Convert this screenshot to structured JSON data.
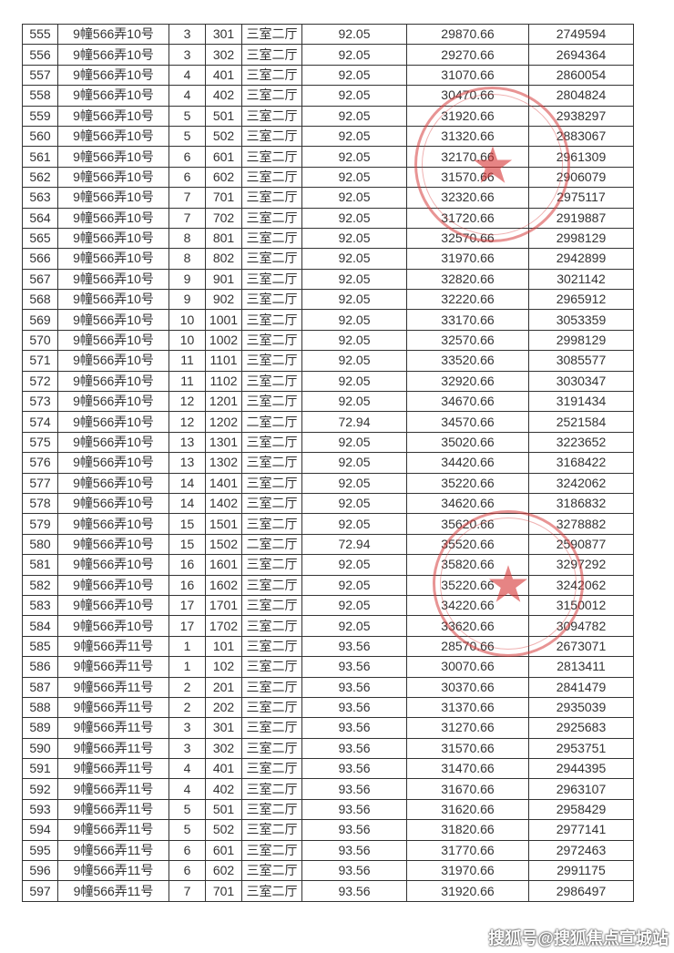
{
  "rows": [
    [
      "555",
      "9幢566弄10号",
      "3",
      "301",
      "三室二厅",
      "92.05",
      "29870.66",
      "2749594"
    ],
    [
      "556",
      "9幢566弄10号",
      "3",
      "302",
      "三室二厅",
      "92.05",
      "29270.66",
      "2694364"
    ],
    [
      "557",
      "9幢566弄10号",
      "4",
      "401",
      "三室二厅",
      "92.05",
      "31070.66",
      "2860054"
    ],
    [
      "558",
      "9幢566弄10号",
      "4",
      "402",
      "三室二厅",
      "92.05",
      "30470.66",
      "2804824"
    ],
    [
      "559",
      "9幢566弄10号",
      "5",
      "501",
      "三室二厅",
      "92.05",
      "31920.66",
      "2938297"
    ],
    [
      "560",
      "9幢566弄10号",
      "5",
      "502",
      "三室二厅",
      "92.05",
      "31320.66",
      "2883067"
    ],
    [
      "561",
      "9幢566弄10号",
      "6",
      "601",
      "三室二厅",
      "92.05",
      "32170.66",
      "2961309"
    ],
    [
      "562",
      "9幢566弄10号",
      "6",
      "602",
      "三室二厅",
      "92.05",
      "31570.66",
      "2906079"
    ],
    [
      "563",
      "9幢566弄10号",
      "7",
      "701",
      "三室二厅",
      "92.05",
      "32320.66",
      "2975117"
    ],
    [
      "564",
      "9幢566弄10号",
      "7",
      "702",
      "三室二厅",
      "92.05",
      "31720.66",
      "2919887"
    ],
    [
      "565",
      "9幢566弄10号",
      "8",
      "801",
      "三室二厅",
      "92.05",
      "32570.66",
      "2998129"
    ],
    [
      "566",
      "9幢566弄10号",
      "8",
      "802",
      "三室二厅",
      "92.05",
      "31970.66",
      "2942899"
    ],
    [
      "567",
      "9幢566弄10号",
      "9",
      "901",
      "三室二厅",
      "92.05",
      "32820.66",
      "3021142"
    ],
    [
      "568",
      "9幢566弄10号",
      "9",
      "902",
      "三室二厅",
      "92.05",
      "32220.66",
      "2965912"
    ],
    [
      "569",
      "9幢566弄10号",
      "10",
      "1001",
      "三室二厅",
      "92.05",
      "33170.66",
      "3053359"
    ],
    [
      "570",
      "9幢566弄10号",
      "10",
      "1002",
      "三室二厅",
      "92.05",
      "32570.66",
      "2998129"
    ],
    [
      "571",
      "9幢566弄10号",
      "11",
      "1101",
      "三室二厅",
      "92.05",
      "33520.66",
      "3085577"
    ],
    [
      "572",
      "9幢566弄10号",
      "11",
      "1102",
      "三室二厅",
      "92.05",
      "32920.66",
      "3030347"
    ],
    [
      "573",
      "9幢566弄10号",
      "12",
      "1201",
      "三室二厅",
      "92.05",
      "34670.66",
      "3191434"
    ],
    [
      "574",
      "9幢566弄10号",
      "12",
      "1202",
      "二室二厅",
      "72.94",
      "34570.66",
      "2521584"
    ],
    [
      "575",
      "9幢566弄10号",
      "13",
      "1301",
      "三室二厅",
      "92.05",
      "35020.66",
      "3223652"
    ],
    [
      "576",
      "9幢566弄10号",
      "13",
      "1302",
      "三室二厅",
      "92.05",
      "34420.66",
      "3168422"
    ],
    [
      "577",
      "9幢566弄10号",
      "14",
      "1401",
      "三室二厅",
      "92.05",
      "35220.66",
      "3242062"
    ],
    [
      "578",
      "9幢566弄10号",
      "14",
      "1402",
      "三室二厅",
      "92.05",
      "34620.66",
      "3186832"
    ],
    [
      "579",
      "9幢566弄10号",
      "15",
      "1501",
      "三室二厅",
      "92.05",
      "35620.66",
      "3278882"
    ],
    [
      "580",
      "9幢566弄10号",
      "15",
      "1502",
      "二室二厅",
      "72.94",
      "35520.66",
      "2590877"
    ],
    [
      "581",
      "9幢566弄10号",
      "16",
      "1601",
      "三室二厅",
      "92.05",
      "35820.66",
      "3297292"
    ],
    [
      "582",
      "9幢566弄10号",
      "16",
      "1602",
      "三室二厅",
      "92.05",
      "35220.66",
      "3242062"
    ],
    [
      "583",
      "9幢566弄10号",
      "17",
      "1701",
      "三室二厅",
      "92.05",
      "34220.66",
      "3150012"
    ],
    [
      "584",
      "9幢566弄10号",
      "17",
      "1702",
      "三室二厅",
      "92.05",
      "33620.66",
      "3094782"
    ],
    [
      "585",
      "9幢566弄11号",
      "1",
      "101",
      "三室二厅",
      "93.56",
      "28570.66",
      "2673071"
    ],
    [
      "586",
      "9幢566弄11号",
      "1",
      "102",
      "三室二厅",
      "93.56",
      "30070.66",
      "2813411"
    ],
    [
      "587",
      "9幢566弄11号",
      "2",
      "201",
      "三室二厅",
      "93.56",
      "30370.66",
      "2841479"
    ],
    [
      "588",
      "9幢566弄11号",
      "2",
      "202",
      "三室二厅",
      "93.56",
      "31370.66",
      "2935039"
    ],
    [
      "589",
      "9幢566弄11号",
      "3",
      "301",
      "三室二厅",
      "93.56",
      "31270.66",
      "2925683"
    ],
    [
      "590",
      "9幢566弄11号",
      "3",
      "302",
      "三室二厅",
      "93.56",
      "31570.66",
      "2953751"
    ],
    [
      "591",
      "9幢566弄11号",
      "4",
      "401",
      "三室二厅",
      "93.56",
      "31470.66",
      "2944395"
    ],
    [
      "592",
      "9幢566弄11号",
      "4",
      "402",
      "三室二厅",
      "93.56",
      "31670.66",
      "2963107"
    ],
    [
      "593",
      "9幢566弄11号",
      "5",
      "501",
      "三室二厅",
      "93.56",
      "31620.66",
      "2958429"
    ],
    [
      "594",
      "9幢566弄11号",
      "5",
      "502",
      "三室二厅",
      "93.56",
      "31820.66",
      "2977141"
    ],
    [
      "595",
      "9幢566弄11号",
      "6",
      "601",
      "三室二厅",
      "93.56",
      "31770.66",
      "2972463"
    ],
    [
      "596",
      "9幢566弄11号",
      "6",
      "602",
      "三室二厅",
      "93.56",
      "31970.66",
      "2991175"
    ],
    [
      "597",
      "9幢566弄11号",
      "7",
      "701",
      "三室二厅",
      "93.56",
      "31920.66",
      "2986497"
    ]
  ],
  "watermark": "搜狐号@搜狐焦点宣城站",
  "colors": {
    "stamp": "#d63c3c",
    "text": "#333333"
  }
}
